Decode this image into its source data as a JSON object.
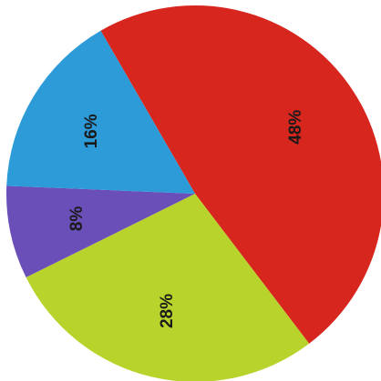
{
  "chart_data": {
    "type": "pie",
    "start_angle_deg": -120,
    "slices": [
      {
        "label": "48%",
        "value": 48,
        "color": "#d7261e"
      },
      {
        "label": "28%",
        "value": 28,
        "color": "#b8d42c"
      },
      {
        "label": "8%",
        "value": 8,
        "color": "#6a4fb8"
      },
      {
        "label": "16%",
        "value": 16,
        "color": "#2c9bd8"
      }
    ],
    "legend": "none"
  }
}
